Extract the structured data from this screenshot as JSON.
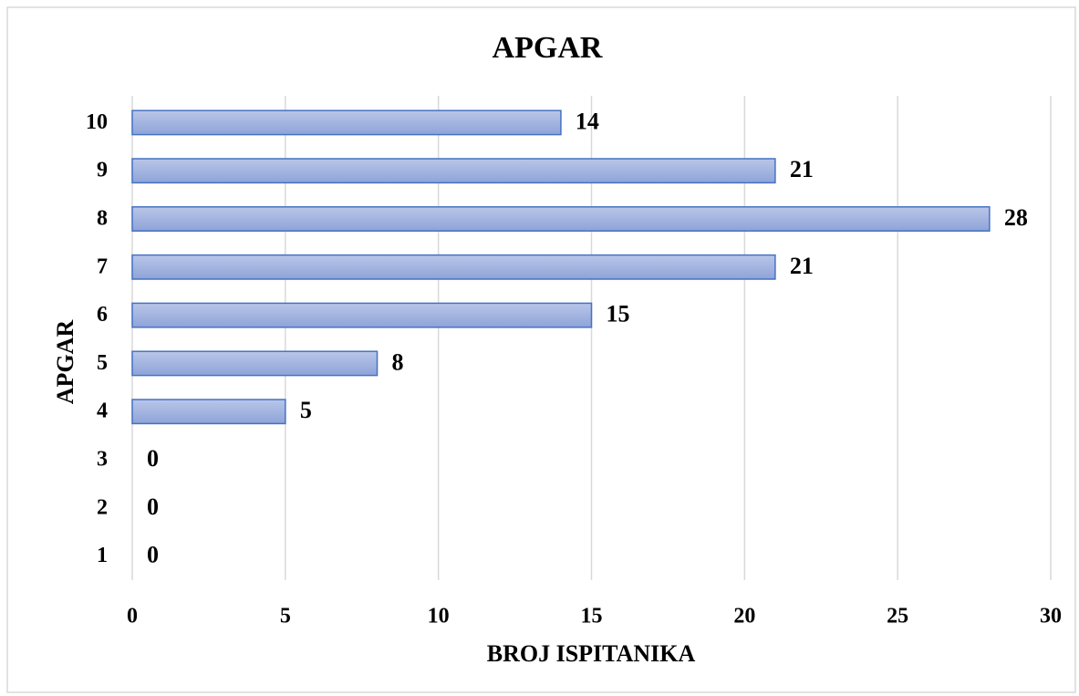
{
  "chart_data": {
    "type": "bar",
    "title": "APGAR",
    "x_label": "BROJ ISPITANIKA",
    "y_label": "APGAR",
    "categories": [
      "1",
      "2",
      "3",
      "4",
      "5",
      "6",
      "7",
      "8",
      "9",
      "10"
    ],
    "values": [
      0,
      0,
      0,
      5,
      8,
      15,
      21,
      28,
      21,
      14
    ],
    "color": "#4472c4",
    "xlim": [
      0,
      30
    ],
    "xticks": [
      0,
      5,
      10,
      15,
      20,
      25,
      30
    ],
    "grid": true
  }
}
